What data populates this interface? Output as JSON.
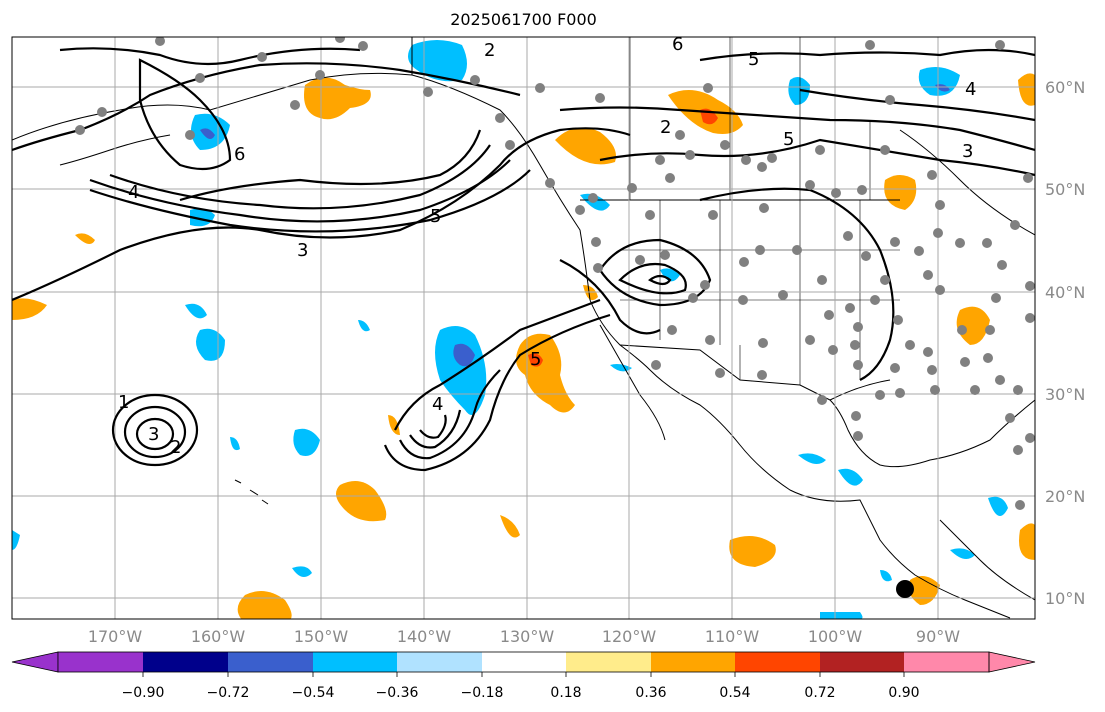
{
  "map": {
    "title": "2025061700 F000",
    "lon_labels": [
      "170°W",
      "160°W",
      "150°W",
      "140°W",
      "130°W",
      "120°W",
      "110°W",
      "100°W",
      "90°W"
    ],
    "lat_labels": [
      "60°N",
      "50°N",
      "40°N",
      "30°N",
      "20°N",
      "10°N"
    ],
    "contour_labels": [
      "2",
      "3",
      "4",
      "5",
      "6",
      "1",
      "2",
      "3",
      "4",
      "5",
      "6",
      "4",
      "5",
      "3",
      "2",
      "5"
    ],
    "colorbar": {
      "ticks": [
        "−0.90",
        "−0.72",
        "−0.54",
        "−0.36",
        "−0.18",
        "0.18",
        "0.36",
        "0.54",
        "0.72",
        "0.90"
      ],
      "colors": [
        "#9932cc",
        "#00008b",
        "#3a5fcd",
        "#00bfff",
        "#b0e2ff",
        "#ffffff",
        "#ffec8b",
        "#ffa500",
        "#ff4500",
        "#b22222",
        "#ff88aa"
      ]
    },
    "colors": {
      "positive_light": "#ffec8b",
      "positive": "#ffa500",
      "positive_strong": "#ff4500",
      "negative": "#00bfff",
      "negative_strong": "#3a5fcd",
      "station_dot": "#808080",
      "grid": "#a9a9a9"
    }
  }
}
